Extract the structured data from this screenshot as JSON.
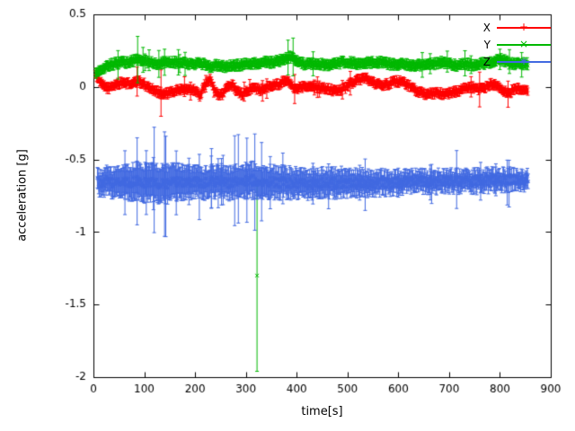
{
  "chart_data": {
    "type": "scatter",
    "title": "",
    "xlabel": "time[s]",
    "ylabel": "acceleration [g]",
    "xlim": [
      0,
      900
    ],
    "ylim": [
      -2,
      0.5
    ],
    "xtick_values": [
      0,
      100,
      200,
      300,
      400,
      500,
      600,
      700,
      800,
      900
    ],
    "xtick_labels": [
      "0",
      "100",
      "200",
      "300",
      "400",
      "500",
      "600",
      "700",
      "800",
      "900"
    ],
    "ytick_values": [
      0.5,
      0,
      -0.5,
      -1,
      -1.5,
      -2
    ],
    "ytick_labels": [
      "0.5",
      "0",
      "-0.5",
      "-1",
      "-1.5",
      "-2"
    ],
    "legend_position": "top-right",
    "grid": false,
    "seed": 1234,
    "series": [
      {
        "name": "X",
        "color": "#ff0000",
        "marker": "plus",
        "t_start": 4,
        "t_end": 856,
        "t_step": 1.2,
        "noise": 0.016,
        "err": 0.025,
        "spike_prob": 0.02,
        "spike_scale": 1.5,
        "anchors": [
          [
            4,
            0.1
          ],
          [
            10,
            0.05
          ],
          [
            18,
            0.01
          ],
          [
            30,
            -0.01
          ],
          [
            45,
            0.02
          ],
          [
            60,
            0.03
          ],
          [
            75,
            0.02
          ],
          [
            88,
            0.04
          ],
          [
            100,
            0.02
          ],
          [
            112,
            -0.01
          ],
          [
            125,
            -0.03
          ],
          [
            138,
            -0.05
          ],
          [
            152,
            -0.04
          ],
          [
            168,
            -0.02
          ],
          [
            182,
            -0.01
          ],
          [
            198,
            -0.02
          ],
          [
            210,
            -0.06
          ],
          [
            220,
            0.02
          ],
          [
            230,
            0.05
          ],
          [
            240,
            -0.04
          ],
          [
            252,
            -0.06
          ],
          [
            262,
            0.0
          ],
          [
            272,
            0.02
          ],
          [
            283,
            -0.03
          ],
          [
            293,
            -0.05
          ],
          [
            303,
            -0.02
          ],
          [
            315,
            -0.01
          ],
          [
            328,
            -0.02
          ],
          [
            340,
            0.0
          ],
          [
            352,
            0.01
          ],
          [
            365,
            0.02
          ],
          [
            378,
            0.05
          ],
          [
            388,
            0.03
          ],
          [
            397,
            -0.02
          ],
          [
            408,
            0.0
          ],
          [
            422,
            0.01
          ],
          [
            438,
            0.0
          ],
          [
            452,
            -0.01
          ],
          [
            468,
            -0.02
          ],
          [
            482,
            -0.03
          ],
          [
            494,
            -0.01
          ],
          [
            508,
            0.03
          ],
          [
            522,
            0.05
          ],
          [
            538,
            0.06
          ],
          [
            552,
            0.03
          ],
          [
            566,
            0.01
          ],
          [
            580,
            0.02
          ],
          [
            596,
            0.04
          ],
          [
            612,
            0.03
          ],
          [
            628,
            -0.01
          ],
          [
            644,
            -0.04
          ],
          [
            660,
            -0.05
          ],
          [
            676,
            -0.04
          ],
          [
            690,
            -0.05
          ],
          [
            704,
            -0.04
          ],
          [
            716,
            -0.03
          ],
          [
            730,
            -0.01
          ],
          [
            744,
            0.0
          ],
          [
            757,
            -0.02
          ],
          [
            770,
            -0.01
          ],
          [
            782,
            0.02
          ],
          [
            794,
            0.01
          ],
          [
            806,
            -0.02
          ],
          [
            816,
            -0.05
          ],
          [
            826,
            -0.02
          ],
          [
            840,
            -0.01
          ],
          [
            856,
            -0.02
          ]
        ],
        "big_errors": [
          [
            86,
            0.1
          ],
          [
            133,
            0.16
          ],
          [
            396,
            0.1
          ],
          [
            760,
            0.12
          ],
          [
            816,
            0.09
          ]
        ],
        "outliers": []
      },
      {
        "name": "Y",
        "color": "#00b800",
        "marker": "cross",
        "t_start": 4,
        "t_end": 856,
        "t_step": 1.2,
        "noise": 0.015,
        "err": 0.028,
        "spike_prob": 0.02,
        "spike_scale": 1.8,
        "anchors": [
          [
            4,
            0.1
          ],
          [
            12,
            0.11
          ],
          [
            25,
            0.14
          ],
          [
            40,
            0.16
          ],
          [
            55,
            0.17
          ],
          [
            70,
            0.17
          ],
          [
            85,
            0.19
          ],
          [
            96,
            0.18
          ],
          [
            110,
            0.17
          ],
          [
            125,
            0.16
          ],
          [
            140,
            0.17
          ],
          [
            158,
            0.17
          ],
          [
            172,
            0.17
          ],
          [
            186,
            0.16
          ],
          [
            200,
            0.16
          ],
          [
            215,
            0.16
          ],
          [
            230,
            0.14
          ],
          [
            245,
            0.15
          ],
          [
            260,
            0.14
          ],
          [
            275,
            0.15
          ],
          [
            290,
            0.15
          ],
          [
            305,
            0.16
          ],
          [
            320,
            0.16
          ],
          [
            336,
            0.17
          ],
          [
            352,
            0.17
          ],
          [
            366,
            0.18
          ],
          [
            380,
            0.2
          ],
          [
            392,
            0.21
          ],
          [
            401,
            0.18
          ],
          [
            414,
            0.16
          ],
          [
            430,
            0.16
          ],
          [
            446,
            0.16
          ],
          [
            460,
            0.15
          ],
          [
            476,
            0.16
          ],
          [
            490,
            0.17
          ],
          [
            506,
            0.17
          ],
          [
            520,
            0.16
          ],
          [
            536,
            0.17
          ],
          [
            550,
            0.17
          ],
          [
            566,
            0.17
          ],
          [
            580,
            0.16
          ],
          [
            596,
            0.15
          ],
          [
            610,
            0.16
          ],
          [
            626,
            0.15
          ],
          [
            640,
            0.15
          ],
          [
            656,
            0.16
          ],
          [
            670,
            0.16
          ],
          [
            686,
            0.17
          ],
          [
            700,
            0.16
          ],
          [
            716,
            0.15
          ],
          [
            730,
            0.16
          ],
          [
            746,
            0.15
          ],
          [
            760,
            0.16
          ],
          [
            776,
            0.16
          ],
          [
            790,
            0.18
          ],
          [
            800,
            0.19
          ],
          [
            810,
            0.18
          ],
          [
            820,
            0.16
          ],
          [
            836,
            0.16
          ],
          [
            856,
            0.16
          ]
        ],
        "big_errors": [
          [
            87,
            0.16
          ],
          [
            140,
            0.09
          ],
          [
            383,
            0.12
          ],
          [
            393,
            0.13
          ],
          [
            800,
            0.07
          ]
        ],
        "outliers": [
          [
            322,
            -1.3,
            0.66
          ]
        ]
      },
      {
        "name": "Z",
        "color": "#4169e1",
        "marker": "star",
        "t_start": 8,
        "t_end": 856,
        "t_step": 1.2,
        "noise": 0.035,
        "err": 0.08,
        "err_anchors": [
          [
            8,
            0.07
          ],
          [
            50,
            0.09
          ],
          [
            90,
            0.11
          ],
          [
            150,
            0.11
          ],
          [
            200,
            0.09
          ],
          [
            260,
            0.09
          ],
          [
            310,
            0.1
          ],
          [
            360,
            0.09
          ],
          [
            420,
            0.08
          ],
          [
            480,
            0.08
          ],
          [
            540,
            0.07
          ],
          [
            600,
            0.06
          ],
          [
            660,
            0.06
          ],
          [
            720,
            0.06
          ],
          [
            780,
            0.06
          ],
          [
            856,
            0.05
          ]
        ],
        "spike_prob": 0.04,
        "spike_scale": 1.6,
        "anchors": [
          [
            8,
            -0.66
          ],
          [
            25,
            -0.65
          ],
          [
            45,
            -0.66
          ],
          [
            65,
            -0.66
          ],
          [
            85,
            -0.65
          ],
          [
            105,
            -0.66
          ],
          [
            125,
            -0.67
          ],
          [
            145,
            -0.67
          ],
          [
            165,
            -0.66
          ],
          [
            185,
            -0.65
          ],
          [
            205,
            -0.66
          ],
          [
            225,
            -0.66
          ],
          [
            245,
            -0.65
          ],
          [
            265,
            -0.66
          ],
          [
            285,
            -0.66
          ],
          [
            305,
            -0.64
          ],
          [
            325,
            -0.65
          ],
          [
            345,
            -0.66
          ],
          [
            365,
            -0.66
          ],
          [
            385,
            -0.66
          ],
          [
            405,
            -0.67
          ],
          [
            425,
            -0.67
          ],
          [
            445,
            -0.66
          ],
          [
            465,
            -0.66
          ],
          [
            485,
            -0.66
          ],
          [
            505,
            -0.66
          ],
          [
            525,
            -0.66
          ],
          [
            545,
            -0.67
          ],
          [
            565,
            -0.66
          ],
          [
            585,
            -0.66
          ],
          [
            605,
            -0.66
          ],
          [
            625,
            -0.65
          ],
          [
            645,
            -0.65
          ],
          [
            665,
            -0.66
          ],
          [
            685,
            -0.65
          ],
          [
            705,
            -0.65
          ],
          [
            725,
            -0.65
          ],
          [
            745,
            -0.65
          ],
          [
            765,
            -0.65
          ],
          [
            785,
            -0.64
          ],
          [
            805,
            -0.64
          ],
          [
            825,
            -0.64
          ],
          [
            845,
            -0.64
          ],
          [
            856,
            -0.64
          ]
        ],
        "big_errors": [
          [
            62,
            0.22
          ],
          [
            86,
            0.3
          ],
          [
            104,
            0.22
          ],
          [
            118,
            0.18
          ],
          [
            140,
            0.36
          ],
          [
            163,
            0.22
          ],
          [
            188,
            0.16
          ],
          [
            232,
            0.18
          ],
          [
            252,
            0.16
          ],
          [
            302,
            0.29
          ],
          [
            331,
            0.27
          ],
          [
            348,
            0.18
          ],
          [
            432,
            0.14
          ],
          [
            524,
            0.12
          ],
          [
            600,
            0.1
          ],
          [
            663,
            0.12
          ],
          [
            762,
            0.13
          ],
          [
            792,
            0.11
          ]
        ],
        "outliers": []
      }
    ]
  },
  "axes_color": "#000000",
  "background_color": "#ffffff"
}
